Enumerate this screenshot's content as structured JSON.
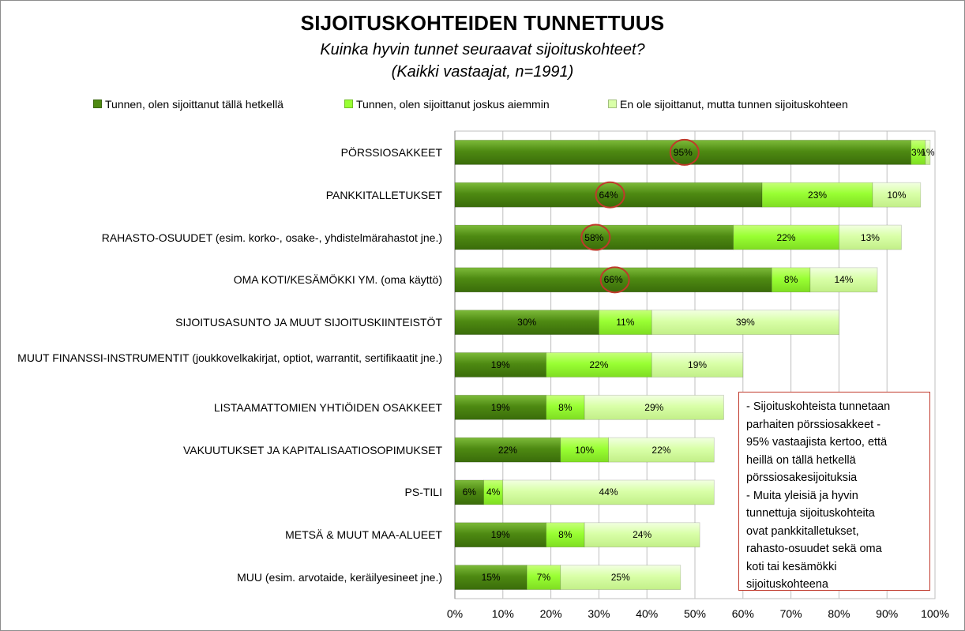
{
  "chart_data": {
    "type": "bar",
    "orientation": "horizontal",
    "stacked": true,
    "title": "SIJOITUSKOHTEIDEN TUNNETTUUS",
    "subtitle": [
      "Kuinka hyvin tunnet seuraavat sijoituskohteet?",
      "(Kaikki vastaajat, n=1991)"
    ],
    "categories": [
      "PÖRSSIOSAKKEET",
      "PANKKITALLETUKSET",
      "RAHASTO-OSUUDET (esim. korko-, osake-, yhdistelmärahastot jne.)",
      "OMA KOTI/KESÄMÖKKI YM. (oma käyttö)",
      "SIJOITUSASUNTO JA MUUT SIJOITUSKIINTEISTÖT",
      "MUUT FINANSSI-INSTRUMENTIT (joukkovelkakirjat, optiot, warrantit, sertifikaatit jne.)",
      "LISTAAMATTOMIEN YHTIÖIDEN OSAKKEET",
      "VAKUUTUKSET JA KAPITALISAATIOSOPIMUKSET",
      "PS-TILI",
      "METSÄ & MUUT MAA-ALUEET",
      "MUU (esim. arvotaide, keräilyesineet jne.)"
    ],
    "series": [
      {
        "name": "Tunnen, olen sijoittanut tällä hetkellä",
        "color": "#4e8a12",
        "values": [
          95,
          64,
          58,
          66,
          30,
          19,
          19,
          22,
          6,
          19,
          15
        ],
        "labels": [
          "95%",
          "64%",
          "58%",
          "66%",
          "30%",
          "19%",
          "19%",
          "22%",
          "6%",
          "19%",
          "15%"
        ]
      },
      {
        "name": "Tunnen, olen sijoittanut joskus aiemmin",
        "color": "#99ff33",
        "values": [
          3,
          23,
          22,
          8,
          11,
          22,
          8,
          10,
          4,
          8,
          7
        ],
        "labels": [
          "3%",
          "23%",
          "22%",
          "8%",
          "11%",
          "22%",
          "8%",
          "10%",
          "4%",
          "8%",
          "7%"
        ]
      },
      {
        "name": "En ole sijoittanut, mutta tunnen sijoituskohteen",
        "color": "#d9ffa8",
        "values": [
          1,
          10,
          13,
          14,
          39,
          19,
          29,
          22,
          44,
          24,
          25
        ],
        "labels": [
          "1%",
          "10%",
          "13%",
          "14%",
          "39%",
          "19%",
          "29%",
          "22%",
          "44%",
          "24%",
          "25%"
        ]
      }
    ],
    "highlighted": [
      0,
      1,
      2,
      3
    ],
    "xlim": [
      0,
      100
    ],
    "xticks": [
      "0%",
      "10%",
      "20%",
      "30%",
      "40%",
      "50%",
      "60%",
      "70%",
      "80%",
      "90%",
      "100%"
    ],
    "grid": true,
    "legend_position": "top"
  },
  "note": {
    "lines": [
      "- Sijoituskohteista tunnetaan",
      "parhaiten pörssiosakkeet -",
      "95% vastaajista kertoo, että",
      "heillä on tällä hetkellä",
      "pörssiosakesijoituksia",
      "- Muita yleisiä ja hyvin",
      "tunnettuja sijoituskohteita",
      "ovat pankkitalletukset,",
      "rahasto-osuudet sekä oma",
      "koti tai kesämökki",
      "sijoituskohteena"
    ]
  },
  "colors": {
    "highlight_circle": "#c0392b",
    "note_border": "#c0392b",
    "grid": "#bfbfbf"
  }
}
